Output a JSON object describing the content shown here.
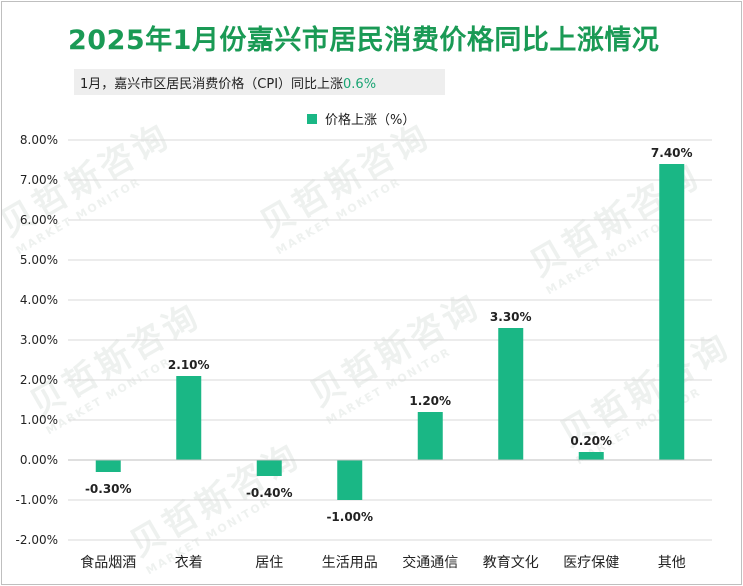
{
  "title": "2025年1月份嘉兴市居民消费价格同比上涨情况",
  "subtitle": {
    "text": "1月，嘉兴市区居民消费价格（CPI）同比上涨",
    "value": "0.6%"
  },
  "watermark": {
    "cn": "贝哲斯咨询",
    "en": "MARKET MONITOR"
  },
  "colors": {
    "bar": "#1ab785",
    "title": "#1a9a55",
    "grid": "#d9d9d9",
    "axis": "#bfbfbf"
  },
  "chart_data": {
    "type": "bar",
    "title": "2025年1月份嘉兴市居民消费价格同比上涨情况",
    "series": [
      {
        "name": "价格上涨（%）",
        "values": [
          -0.3,
          2.1,
          -0.4,
          -1.0,
          1.2,
          3.3,
          0.2,
          7.4
        ]
      }
    ],
    "categories": [
      "食品烟酒",
      "衣着",
      "居住",
      "生活用品",
      "交通通信",
      "教育文化",
      "医疗保健",
      "其他"
    ],
    "value_labels": [
      "-0.30%",
      "2.10%",
      "-0.40%",
      "-1.00%",
      "1.20%",
      "3.30%",
      "0.20%",
      "7.40%"
    ],
    "yticks": [
      "-2.00%",
      "-1.00%",
      "0.00%",
      "1.00%",
      "2.00%",
      "3.00%",
      "4.00%",
      "5.00%",
      "6.00%",
      "7.00%",
      "8.00%"
    ],
    "ylim": [
      -2,
      8
    ],
    "xlabel": "",
    "ylabel": "",
    "legend": "top-center"
  }
}
